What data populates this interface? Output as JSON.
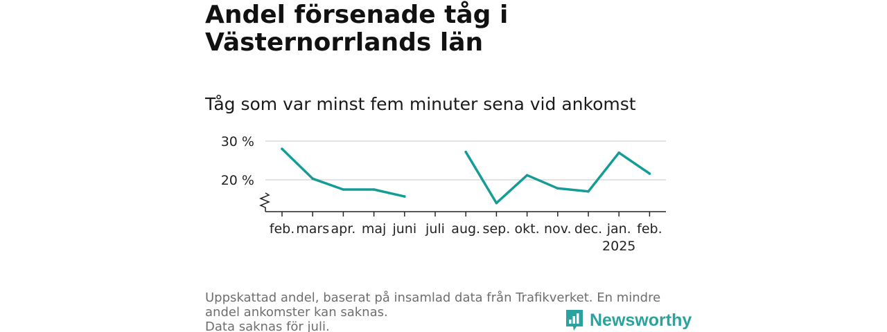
{
  "title": "Andel försenade tåg i Västernorrlands län",
  "subtitle": "Tåg som var minst fem minuter sena vid ankomst",
  "footer": {
    "line1": "Uppskattad andel, baserat på insamlad data från Trafikverket. En mindre andel ankomster kan saknas.",
    "line2": "Data saknas för juli."
  },
  "brand": {
    "name": "Newsworthy",
    "color": "#2aa3a0"
  },
  "chart_data": {
    "type": "line",
    "title": "Andel försenade tåg i Västernorrlands län",
    "subtitle": "Tåg som var minst fem minuter sena vid ankomst",
    "categories": [
      "feb.",
      "mars",
      "apr.",
      "maj",
      "juni",
      "juli",
      "aug.",
      "sep.",
      "okt.",
      "nov.",
      "dec.",
      "jan.",
      "feb."
    ],
    "category_sublabels": [
      "",
      "",
      "",
      "",
      "",
      "",
      "",
      "",
      "",
      "",
      "",
      "2025",
      ""
    ],
    "series": [
      {
        "values": [
          28,
          20.3,
          17.5,
          17.5,
          15.7,
          null,
          27.2,
          14,
          21.2,
          17.8,
          17,
          27,
          21.6
        ],
        "color": "#169c96"
      }
    ],
    "yticks": [
      20,
      30
    ],
    "ytick_labels": [
      "20 %",
      "30 %"
    ],
    "ylim": [
      12,
      30
    ],
    "y_axis_break": true,
    "grid": true,
    "missing": [
      "juli"
    ]
  }
}
